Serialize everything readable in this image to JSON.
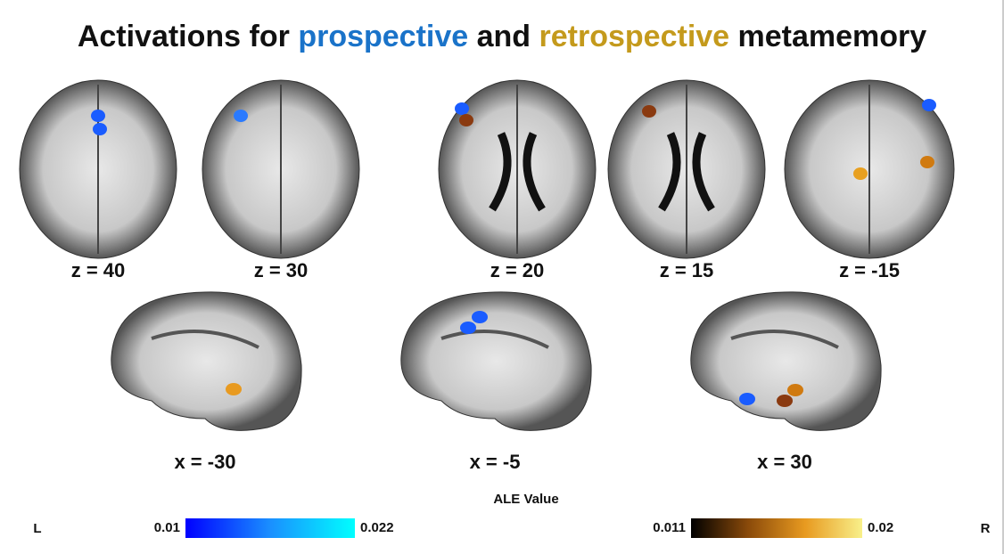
{
  "title": {
    "parts": [
      "Activations for",
      "prospective",
      "and",
      "retrospective",
      "metamemory"
    ],
    "colors": [
      "#111111",
      "#1a73c9",
      "#111111",
      "#c49a1c",
      "#111111"
    ]
  },
  "axial_labels": [
    "z = 40",
    "z = 30",
    "z = 20",
    "z = 15",
    "z = -15"
  ],
  "sagittal_labels": [
    "x = -30",
    "x = -5",
    "x = 30"
  ],
  "colorbar_title": "ALE Value",
  "colorbars": [
    {
      "min": 0.01,
      "max": 0.022,
      "colors": [
        "#0000ff",
        "#1a8fff",
        "#00ffff"
      ]
    },
    {
      "min": 0.011,
      "max": 0.02,
      "colors": [
        "#000000",
        "#8a4a0a",
        "#e89a20",
        "#f8f08a"
      ]
    }
  ],
  "side_left": "L",
  "side_right": "R"
}
